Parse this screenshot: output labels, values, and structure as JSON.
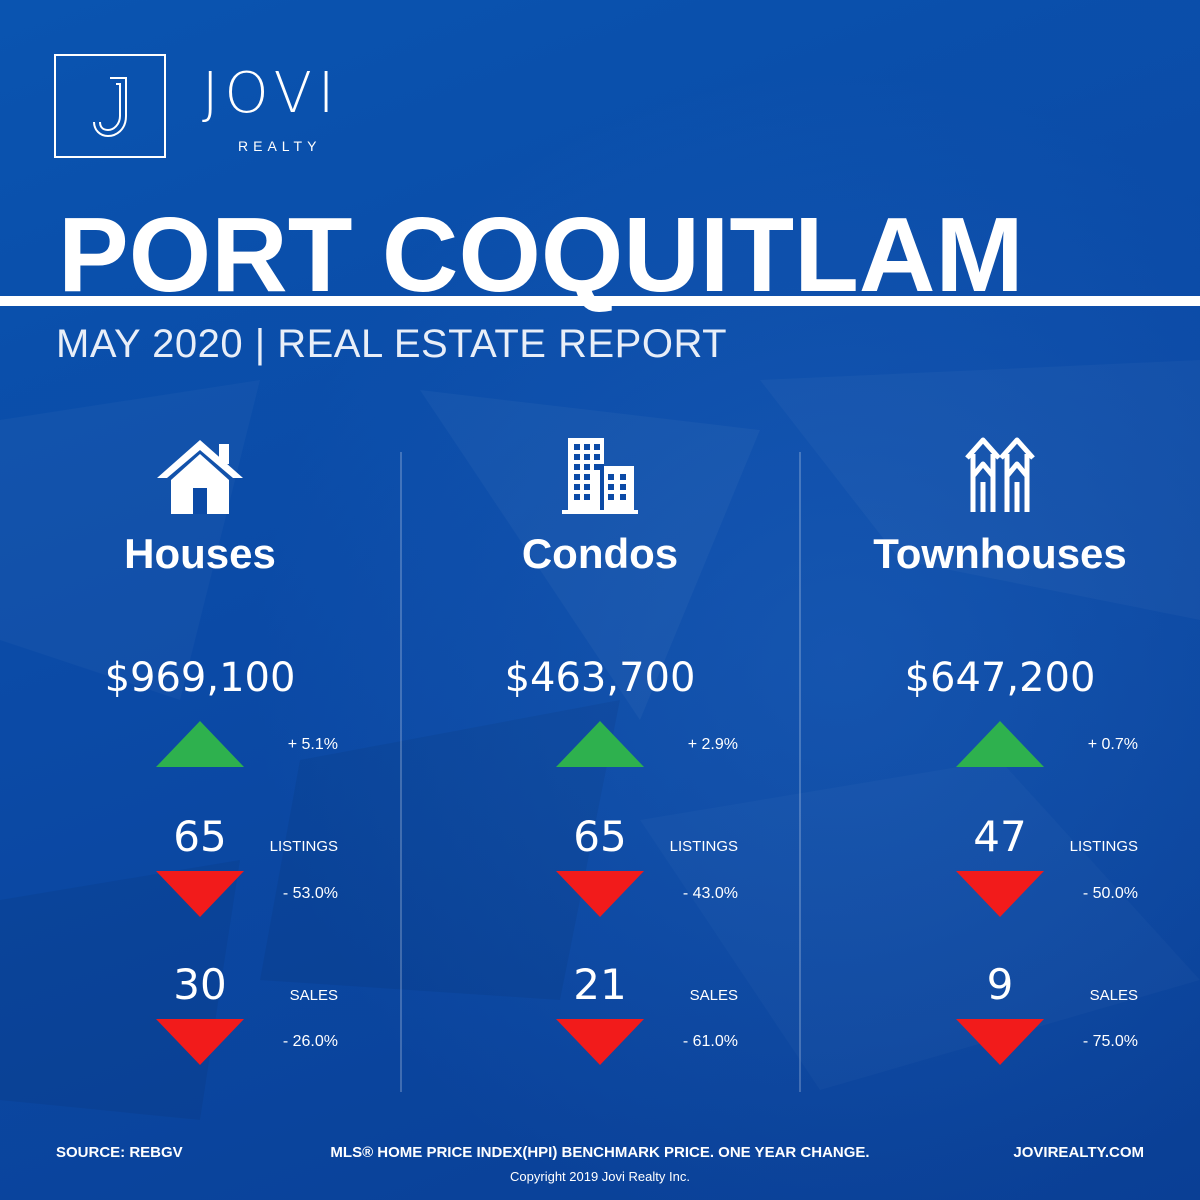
{
  "brand": {
    "name": "JOVI",
    "sub": "REALTY",
    "mark": "J"
  },
  "title": "PORT COQUITLAM",
  "subtitle": "MAY 2020 | REAL ESTATE REPORT",
  "colors": {
    "background": "#0b4aa6",
    "up": "#2eb14e",
    "down": "#f21b1b",
    "text": "#ffffff"
  },
  "columns": [
    {
      "icon": "house-icon",
      "name": "Houses",
      "price": "$969,100",
      "price_change": "+ 5.1%",
      "price_trend": "up",
      "listings": "65",
      "listings_label": "LISTINGS",
      "listings_change": "- 53.0%",
      "listings_trend": "down",
      "sales": "30",
      "sales_label": "SALES",
      "sales_change": "- 26.0%",
      "sales_trend": "down"
    },
    {
      "icon": "condo-building-icon",
      "name": "Condos",
      "price": "$463,700",
      "price_change": "+ 2.9%",
      "price_trend": "up",
      "listings": "65",
      "listings_label": "LISTINGS",
      "listings_change": "- 43.0%",
      "listings_trend": "down",
      "sales": "21",
      "sales_label": "SALES",
      "sales_change": "- 61.0%",
      "sales_trend": "down"
    },
    {
      "icon": "townhouse-icon",
      "name": "Townhouses",
      "price": "$647,200",
      "price_change": "+ 0.7%",
      "price_trend": "up",
      "listings": "47",
      "listings_label": "LISTINGS",
      "listings_change": "- 50.0%",
      "listings_trend": "down",
      "sales": "9",
      "sales_label": "SALES",
      "sales_change": "- 75.0%",
      "sales_trend": "down"
    }
  ],
  "footer": {
    "source": "SOURCE:  REBGV",
    "note": "MLS® HOME PRICE INDEX(HPI) BENCHMARK PRICE. ONE YEAR CHANGE.",
    "website": "JOVIREALTY.COM",
    "copyright": "Copyright 2019 Jovi Realty Inc."
  }
}
